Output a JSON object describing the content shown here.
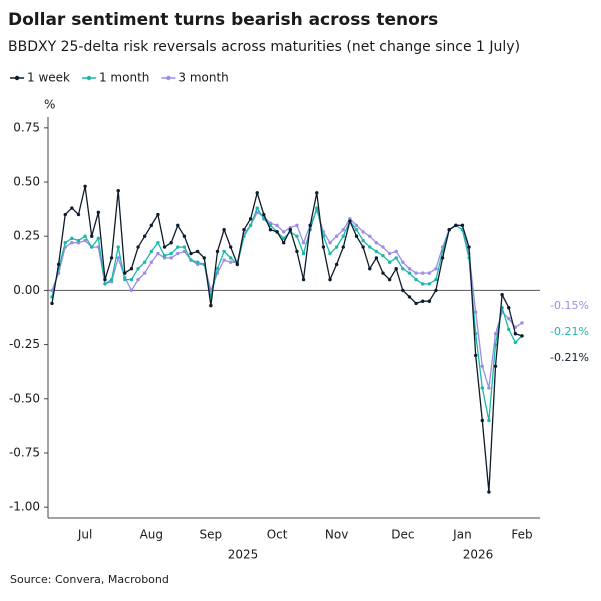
{
  "chart_data": {
    "type": "line",
    "title": "Dollar sentiment turns bearish across tenors",
    "subtitle": "BBDXY 25-delta risk reversals across maturities (net change since 1 July)",
    "y_label": "%",
    "source": "Source: Convera, Macrobond",
    "year_labels": [
      "2025",
      "2026"
    ],
    "categories": [
      null,
      null,
      null,
      null,
      null,
      "Jul",
      null,
      null,
      null,
      null,
      null,
      null,
      null,
      null,
      null,
      "Aug",
      null,
      null,
      null,
      null,
      null,
      null,
      null,
      null,
      "Sep",
      null,
      null,
      null,
      null,
      null,
      null,
      null,
      null,
      null,
      "Oct",
      null,
      null,
      null,
      null,
      null,
      null,
      null,
      null,
      "Nov",
      null,
      null,
      null,
      null,
      null,
      null,
      null,
      null,
      null,
      "Dec",
      null,
      null,
      null,
      null,
      null,
      null,
      null,
      null,
      "Jan",
      null,
      null,
      null,
      null,
      null,
      null,
      null,
      null,
      "Feb"
    ],
    "series": [
      {
        "name": "1 week",
        "color": "#0d1b2a",
        "end_label": "-0.21%",
        "values": [
          -0.06,
          0.12,
          0.35,
          0.38,
          0.35,
          0.48,
          0.25,
          0.36,
          0.05,
          0.15,
          0.46,
          0.08,
          0.1,
          0.2,
          0.25,
          0.3,
          0.35,
          0.2,
          0.22,
          0.3,
          0.25,
          0.17,
          0.18,
          0.15,
          -0.07,
          0.18,
          0.28,
          0.2,
          0.12,
          0.28,
          0.33,
          0.45,
          0.35,
          0.28,
          0.27,
          0.22,
          0.28,
          0.18,
          0.05,
          0.3,
          0.45,
          0.2,
          0.05,
          0.12,
          0.2,
          0.32,
          0.25,
          0.2,
          0.1,
          0.15,
          0.08,
          0.05,
          0.1,
          0.0,
          -0.03,
          -0.06,
          -0.05,
          -0.05,
          0.0,
          0.15,
          0.28,
          0.3,
          0.3,
          0.2,
          -0.3,
          -0.6,
          -0.93,
          -0.35,
          -0.02,
          -0.08,
          -0.2,
          -0.21
        ]
      },
      {
        "name": "1 month",
        "color": "#1ab8a6",
        "end_label": "-0.21%",
        "values": [
          -0.03,
          0.1,
          0.22,
          0.24,
          0.23,
          0.25,
          0.2,
          0.24,
          0.03,
          0.05,
          0.2,
          0.05,
          0.05,
          0.1,
          0.13,
          0.18,
          0.22,
          0.16,
          0.17,
          0.2,
          0.2,
          0.14,
          0.13,
          0.12,
          -0.03,
          0.1,
          0.18,
          0.15,
          0.12,
          0.25,
          0.3,
          0.38,
          0.33,
          0.3,
          0.27,
          0.24,
          0.27,
          0.25,
          0.17,
          0.28,
          0.38,
          0.25,
          0.17,
          0.2,
          0.25,
          0.32,
          0.28,
          0.23,
          0.2,
          0.18,
          0.16,
          0.13,
          0.15,
          0.1,
          0.08,
          0.05,
          0.03,
          0.03,
          0.05,
          0.18,
          0.28,
          0.3,
          0.28,
          0.15,
          -0.2,
          -0.45,
          -0.6,
          -0.25,
          -0.08,
          -0.18,
          -0.24,
          -0.21
        ]
      },
      {
        "name": "3 month",
        "color": "#9b8ce8",
        "end_label": "-0.15%",
        "values": [
          0.0,
          0.08,
          0.2,
          0.22,
          0.22,
          0.23,
          0.2,
          0.2,
          0.03,
          0.04,
          0.15,
          0.06,
          0.0,
          0.05,
          0.08,
          0.13,
          0.17,
          0.15,
          0.15,
          0.17,
          0.18,
          0.14,
          0.12,
          0.12,
          0.0,
          0.08,
          0.14,
          0.13,
          0.13,
          0.26,
          0.3,
          0.36,
          0.34,
          0.31,
          0.3,
          0.27,
          0.29,
          0.3,
          0.22,
          0.3,
          0.37,
          0.27,
          0.22,
          0.25,
          0.28,
          0.33,
          0.3,
          0.27,
          0.25,
          0.22,
          0.2,
          0.17,
          0.18,
          0.13,
          0.1,
          0.08,
          0.08,
          0.08,
          0.1,
          0.2,
          0.28,
          0.3,
          0.3,
          0.17,
          -0.1,
          -0.35,
          -0.45,
          -0.2,
          -0.1,
          -0.13,
          -0.17,
          -0.15
        ]
      }
    ],
    "ylim": [
      -1.05,
      0.8
    ],
    "yticks": [
      0.75,
      {
        "value": 0.5,
        "label": "0.50"
      },
      0.25,
      {
        "value": 0,
        "label": "0.00"
      },
      -0.25,
      {
        "value": -0.5,
        "label": "-0.50"
      },
      {
        "value": -0.75,
        "label": "-0.75"
      },
      {
        "value": -1,
        "label": "-1.00"
      }
    ],
    "zero_line": true
  }
}
